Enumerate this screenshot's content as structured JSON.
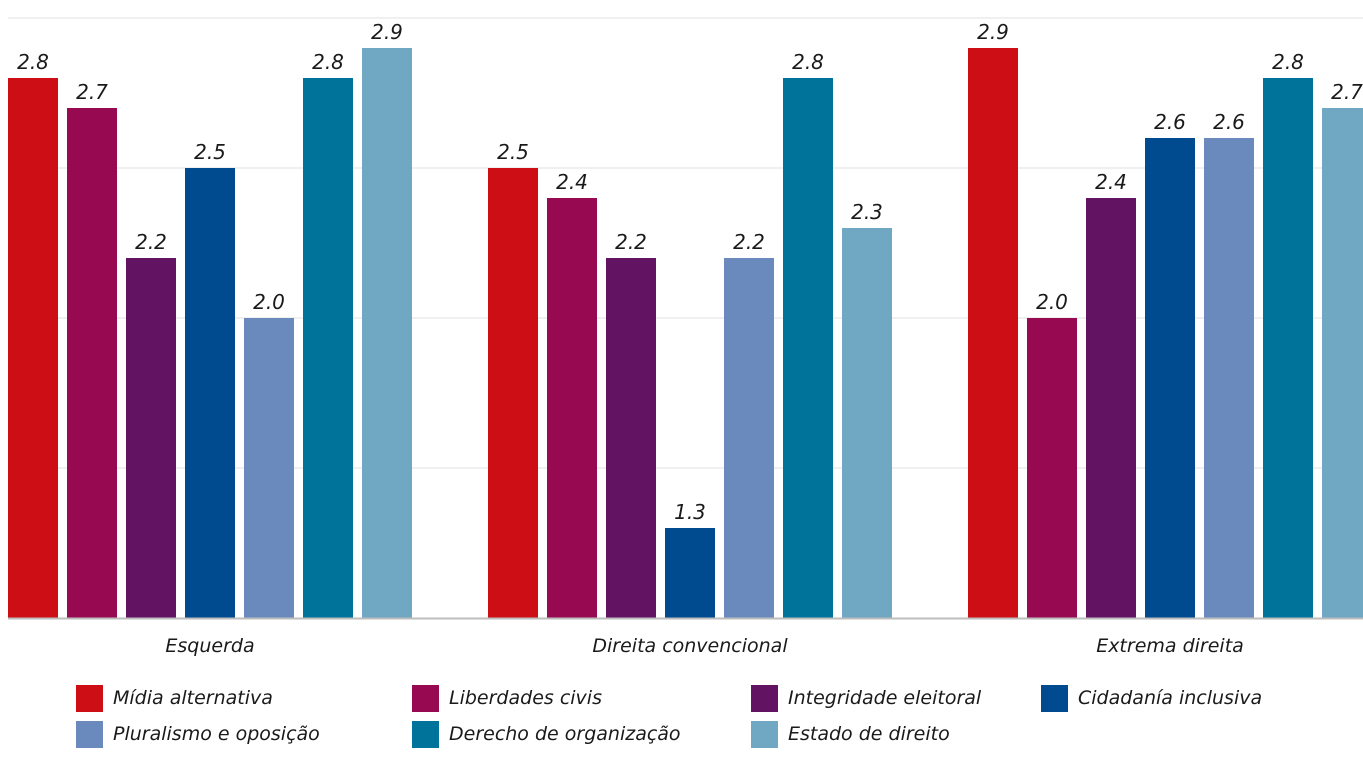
{
  "chart_data": {
    "type": "bar",
    "title": "",
    "xlabel": "",
    "ylabel": "",
    "ylim": [
      1,
      3
    ],
    "grid": true,
    "legend_position": "bottom",
    "categories": [
      "Esquerda",
      "Direita convencional",
      "Extrema direita"
    ],
    "series": [
      {
        "name": "Mídia alternativa",
        "color": "#cd0f15",
        "values": [
          2.8,
          2.5,
          2.9
        ],
        "labels": [
          "2.8",
          "2.5",
          "2.9"
        ]
      },
      {
        "name": "Liberdades civis",
        "color": "#970a51",
        "values": [
          2.7,
          2.4,
          2.0
        ],
        "labels": [
          "2.7",
          "2.4",
          "2.0"
        ]
      },
      {
        "name": "Integridade eleitoral",
        "color": "#621462",
        "values": [
          2.2,
          2.2,
          2.4
        ],
        "labels": [
          "2.2",
          "2.2",
          "2.4"
        ]
      },
      {
        "name": "Cidadanía inclusiva",
        "color": "#004a8f",
        "values": [
          2.5,
          1.3,
          2.6
        ],
        "labels": [
          "2.5",
          "1.3",
          "2.6"
        ]
      },
      {
        "name": "Pluralismo e oposição",
        "color": "#6a8abd",
        "values": [
          2.0,
          2.2,
          2.6
        ],
        "labels": [
          "2.0",
          "2.2",
          "2.6"
        ]
      },
      {
        "name": "Derecho de organização",
        "color": "#00739a",
        "values": [
          2.8,
          2.8,
          2.8
        ],
        "labels": [
          "2.8",
          "2.8",
          "2.8"
        ]
      },
      {
        "name": "Estado de direito",
        "color": "#70a7c3",
        "values": [
          2.9,
          2.3,
          2.7
        ],
        "labels": [
          "2.9",
          "2.3",
          "2.7"
        ]
      }
    ]
  }
}
